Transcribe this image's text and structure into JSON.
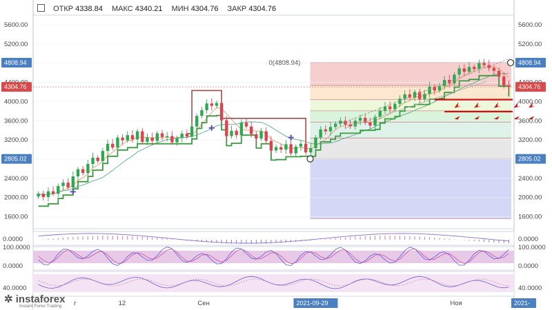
{
  "header": {
    "open_label": "ОТКР",
    "open_value": "4338.84",
    "high_label": "МАКС",
    "high_value": "4340.21",
    "low_label": "МИН",
    "low_value": "4304.76",
    "close_label": "ЗАКР",
    "close_value": "4304.76"
  },
  "logo": {
    "name": "instaforex",
    "tagline": "Instant Forex Trading"
  },
  "colors": {
    "bull": "#2fa84f",
    "bear": "#d9444f",
    "tag_blue": "#4a7fc1",
    "tag_red": "#d94a4a"
  },
  "chart_data": {
    "type": "candlestick",
    "y_ticks": [
      "5600.00",
      "5200.00",
      "4800.00",
      "4400.00",
      "4000.00",
      "3600.00",
      "3200.00",
      "2800.00",
      "2400.00",
      "2000.00",
      "1600.00"
    ],
    "ylim": [
      1350,
      5800
    ],
    "x_labels": [
      {
        "text": "г",
        "index": 8
      },
      {
        "text": "12",
        "index": 17
      },
      {
        "text": "Сен",
        "index": 33
      },
      {
        "text": "2021-09-29",
        "index": 56,
        "highlight": true
      },
      {
        "text": "Ноя",
        "index": 84
      },
      {
        "text": "2021-",
        "index": 98,
        "highlight": true
      }
    ],
    "price_tags": [
      {
        "text": "4808.94",
        "value": 4808.94,
        "color": "#4a7fc1"
      },
      {
        "text": "4304.76",
        "value": 4304.76,
        "color": "#d94a4a"
      },
      {
        "text": "2805.02",
        "value": 2805.02,
        "color": "#4a7fc1"
      }
    ],
    "fib_label": "0(4808.94)",
    "fib_high": 4808.94,
    "fib_low": 2805.02,
    "fib_levels": [
      4808.94,
      4335,
      4040,
      3806,
      3572,
      3240,
      2805.02,
      1560
    ],
    "closes": [
      2080,
      2010,
      2130,
      2080,
      2240,
      2310,
      2210,
      2440,
      2590,
      2510,
      2700,
      2830,
      2760,
      2970,
      3120,
      3040,
      3250,
      3190,
      3300,
      3210,
      3380,
      3160,
      3250,
      3180,
      3340,
      3260,
      3280,
      3150,
      3240,
      3330,
      3270,
      3480,
      3700,
      3820,
      3960,
      3910,
      3970,
      3610,
      3280,
      3390,
      3300,
      3560,
      3480,
      3320,
      3230,
      3380,
      3180,
      2980,
      3050,
      3000,
      3110,
      2920,
      3060,
      3120,
      2940,
      3030,
      3250,
      3420,
      3380,
      3470,
      3540,
      3600,
      3520,
      3480,
      3600,
      3660,
      3560,
      3500,
      3680,
      3810,
      3900,
      3840,
      3950,
      4060,
      4150,
      4080,
      4200,
      4050,
      4160,
      4310,
      4230,
      4320,
      4450,
      4380,
      4560,
      4690,
      4620,
      4720,
      4680,
      4800,
      4760,
      4700,
      4640,
      4520,
      4338.84,
      4304.76
    ],
    "macd_zero_label": "0.0000",
    "stoch_labels": [
      "100.0000",
      "0.0000"
    ],
    "rsi_label": "40.0000"
  }
}
